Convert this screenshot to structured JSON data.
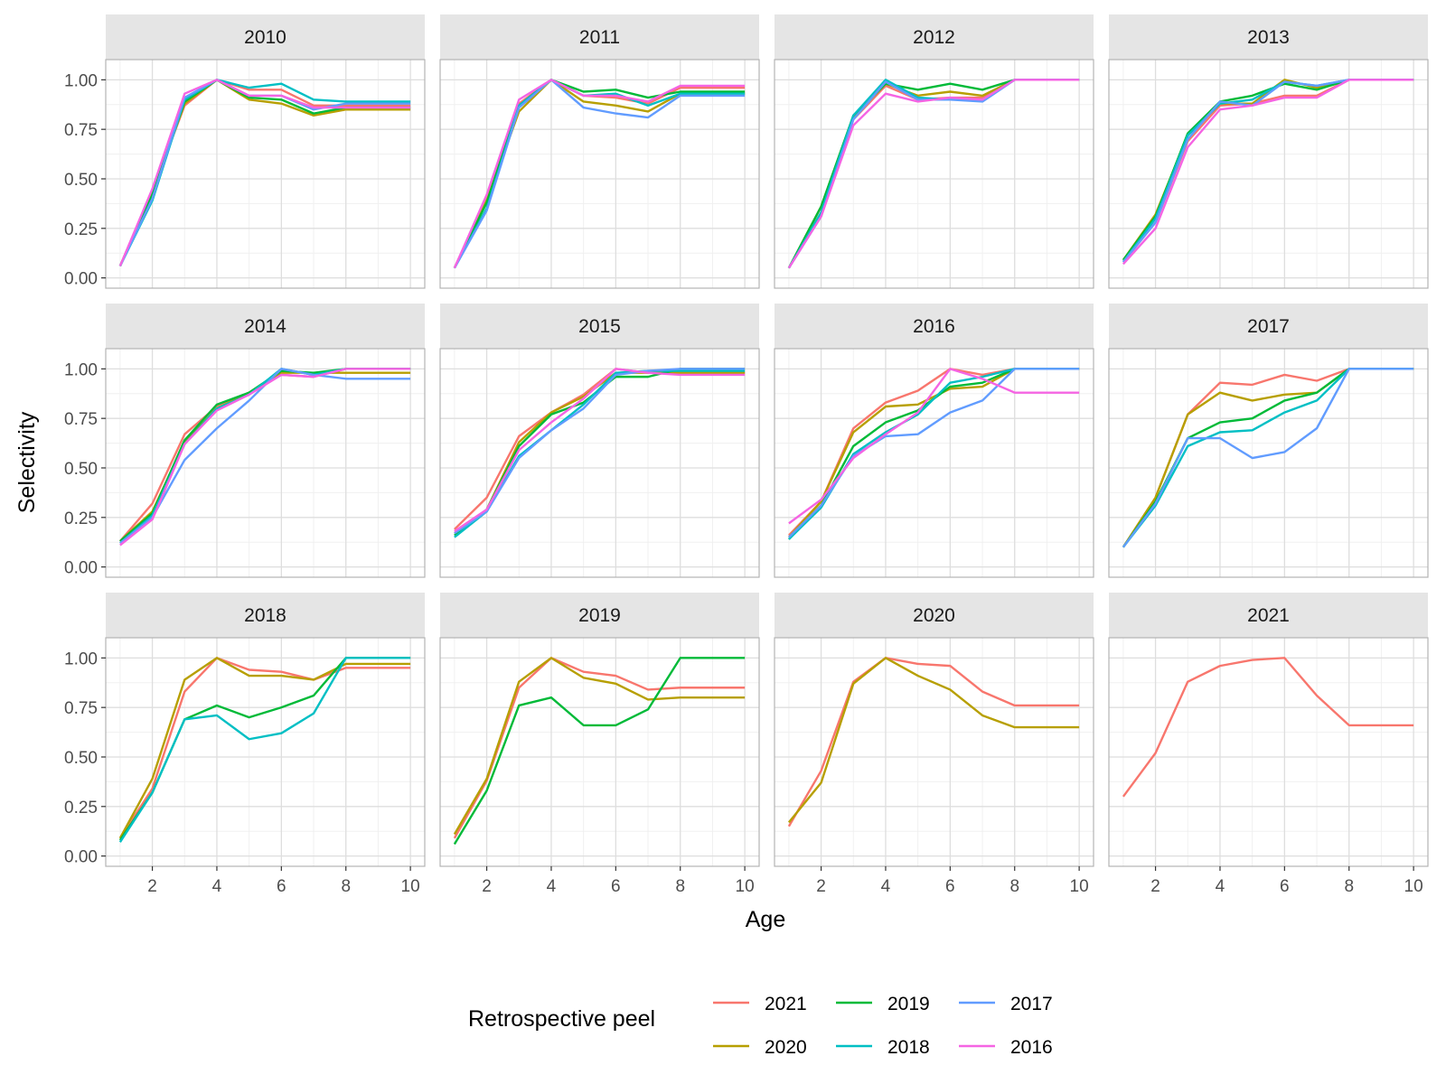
{
  "chart_data": {
    "type": "line",
    "xlabel": "Age",
    "ylabel": "Selectivity",
    "xlim": [
      1,
      10
    ],
    "ylim": [
      0,
      1.05
    ],
    "x_ticks": [
      "2",
      "4",
      "6",
      "8",
      "10"
    ],
    "y_ticks": [
      "0.00",
      "0.25",
      "0.50",
      "0.75",
      "1.00"
    ],
    "grid": true,
    "legend": {
      "title": "Retrospective peel",
      "position": "bottom",
      "entries": [
        {
          "name": "2021",
          "color": "#F8766D"
        },
        {
          "name": "2020",
          "color": "#B79F00"
        },
        {
          "name": "2019",
          "color": "#00BA38"
        },
        {
          "name": "2018",
          "color": "#00BFC4"
        },
        {
          "name": "2017",
          "color": "#619CFF"
        },
        {
          "name": "2016",
          "color": "#F564E3"
        }
      ]
    },
    "x": [
      1,
      2,
      3,
      4,
      5,
      6,
      7,
      8,
      9,
      10
    ],
    "panels": [
      {
        "title": "2010",
        "series": [
          {
            "name": "2021",
            "values": [
              0.06,
              0.44,
              0.87,
              1.0,
              0.95,
              0.95,
              0.87,
              0.87,
              0.87,
              0.87
            ]
          },
          {
            "name": "2020",
            "values": [
              0.06,
              0.43,
              0.88,
              1.0,
              0.9,
              0.88,
              0.82,
              0.85,
              0.85,
              0.85
            ]
          },
          {
            "name": "2019",
            "values": [
              0.06,
              0.42,
              0.89,
              1.0,
              0.91,
              0.9,
              0.83,
              0.86,
              0.86,
              0.86
            ]
          },
          {
            "name": "2018",
            "values": [
              0.06,
              0.39,
              0.9,
              1.0,
              0.96,
              0.98,
              0.9,
              0.89,
              0.89,
              0.89
            ]
          },
          {
            "name": "2017",
            "values": [
              0.06,
              0.4,
              0.91,
              1.0,
              0.92,
              0.92,
              0.85,
              0.88,
              0.88,
              0.88
            ]
          },
          {
            "name": "2016",
            "values": [
              0.06,
              0.45,
              0.93,
              1.0,
              0.92,
              0.92,
              0.86,
              0.86,
              0.86,
              0.86
            ]
          }
        ]
      },
      {
        "title": "2011",
        "series": [
          {
            "name": "2021",
            "values": [
              0.05,
              0.4,
              0.88,
              1.0,
              0.92,
              0.91,
              0.88,
              0.96,
              0.96,
              0.96
            ]
          },
          {
            "name": "2020",
            "values": [
              0.05,
              0.39,
              0.84,
              1.0,
              0.89,
              0.87,
              0.84,
              0.93,
              0.93,
              0.93
            ]
          },
          {
            "name": "2019",
            "values": [
              0.05,
              0.38,
              0.87,
              1.0,
              0.94,
              0.95,
              0.91,
              0.94,
              0.94,
              0.94
            ]
          },
          {
            "name": "2018",
            "values": [
              0.05,
              0.35,
              0.87,
              1.0,
              0.92,
              0.93,
              0.87,
              0.93,
              0.93,
              0.93
            ]
          },
          {
            "name": "2017",
            "values": [
              0.05,
              0.34,
              0.86,
              1.0,
              0.86,
              0.83,
              0.81,
              0.92,
              0.92,
              0.92
            ]
          },
          {
            "name": "2016",
            "values": [
              0.05,
              0.42,
              0.9,
              1.0,
              0.92,
              0.92,
              0.89,
              0.97,
              0.97,
              0.97
            ]
          }
        ]
      },
      {
        "title": "2012",
        "series": [
          {
            "name": "2021",
            "values": [
              0.05,
              0.33,
              0.8,
              0.97,
              0.9,
              0.91,
              0.91,
              1.0,
              1.0,
              1.0
            ]
          },
          {
            "name": "2020",
            "values": [
              0.05,
              0.36,
              0.81,
              0.98,
              0.92,
              0.94,
              0.92,
              1.0,
              1.0,
              1.0
            ]
          },
          {
            "name": "2019",
            "values": [
              0.05,
              0.36,
              0.82,
              0.98,
              0.95,
              0.98,
              0.95,
              1.0,
              1.0,
              1.0
            ]
          },
          {
            "name": "2018",
            "values": [
              0.05,
              0.33,
              0.82,
              1.0,
              0.91,
              0.9,
              0.9,
              1.0,
              1.0,
              1.0
            ]
          },
          {
            "name": "2017",
            "values": [
              0.05,
              0.31,
              0.8,
              0.99,
              0.9,
              0.9,
              0.89,
              1.0,
              1.0,
              1.0
            ]
          },
          {
            "name": "2016",
            "values": [
              0.05,
              0.31,
              0.77,
              0.93,
              0.89,
              0.91,
              0.9,
              1.0,
              1.0,
              1.0
            ]
          }
        ]
      },
      {
        "title": "2013",
        "series": [
          {
            "name": "2021",
            "values": [
              0.08,
              0.28,
              0.69,
              0.87,
              0.88,
              0.92,
              0.92,
              1.0,
              1.0,
              1.0
            ]
          },
          {
            "name": "2020",
            "values": [
              0.09,
              0.32,
              0.72,
              0.88,
              0.88,
              1.0,
              0.96,
              1.0,
              1.0,
              1.0
            ]
          },
          {
            "name": "2019",
            "values": [
              0.09,
              0.31,
              0.73,
              0.89,
              0.92,
              0.98,
              0.95,
              1.0,
              1.0,
              1.0
            ]
          },
          {
            "name": "2018",
            "values": [
              0.08,
              0.3,
              0.72,
              0.88,
              0.9,
              0.99,
              0.97,
              1.0,
              1.0,
              1.0
            ]
          },
          {
            "name": "2017",
            "values": [
              0.08,
              0.28,
              0.7,
              0.89,
              0.87,
              0.99,
              0.97,
              1.0,
              1.0,
              1.0
            ]
          },
          {
            "name": "2016",
            "values": [
              0.07,
              0.25,
              0.66,
              0.85,
              0.87,
              0.91,
              0.91,
              1.0,
              1.0,
              1.0
            ]
          }
        ]
      },
      {
        "title": "2014",
        "series": [
          {
            "name": "2021",
            "values": [
              0.13,
              0.32,
              0.67,
              0.81,
              0.88,
              0.97,
              0.96,
              1.0,
              1.0,
              1.0
            ]
          },
          {
            "name": "2020",
            "values": [
              0.13,
              0.28,
              0.63,
              0.8,
              0.88,
              0.98,
              0.98,
              0.98,
              0.98,
              0.98
            ]
          },
          {
            "name": "2019",
            "values": [
              0.13,
              0.27,
              0.64,
              0.82,
              0.88,
              0.99,
              0.98,
              1.0,
              1.0,
              1.0
            ]
          },
          {
            "name": "2018",
            "values": [
              0.12,
              0.26,
              0.62,
              0.8,
              0.87,
              1.0,
              0.97,
              1.0,
              1.0,
              1.0
            ]
          },
          {
            "name": "2017",
            "values": [
              0.12,
              0.25,
              0.54,
              0.7,
              0.84,
              1.0,
              0.97,
              0.95,
              0.95,
              0.95
            ]
          },
          {
            "name": "2016",
            "values": [
              0.11,
              0.24,
              0.62,
              0.79,
              0.87,
              0.97,
              0.96,
              1.0,
              1.0,
              1.0
            ]
          }
        ]
      },
      {
        "title": "2015",
        "series": [
          {
            "name": "2021",
            "values": [
              0.19,
              0.35,
              0.66,
              0.78,
              0.87,
              1.0,
              0.98,
              0.98,
              0.98,
              0.98
            ]
          },
          {
            "name": "2020",
            "values": [
              0.17,
              0.29,
              0.63,
              0.78,
              0.86,
              0.98,
              0.98,
              0.98,
              0.98,
              0.98
            ]
          },
          {
            "name": "2019",
            "values": [
              0.16,
              0.29,
              0.61,
              0.77,
              0.83,
              0.96,
              0.96,
              1.0,
              1.0,
              1.0
            ]
          },
          {
            "name": "2018",
            "values": [
              0.15,
              0.28,
              0.56,
              0.69,
              0.82,
              0.98,
              0.99,
              0.99,
              0.99,
              0.99
            ]
          },
          {
            "name": "2017",
            "values": [
              0.17,
              0.28,
              0.55,
              0.69,
              0.8,
              0.97,
              0.99,
              1.0,
              1.0,
              1.0
            ]
          },
          {
            "name": "2016",
            "values": [
              0.18,
              0.29,
              0.59,
              0.73,
              0.85,
              1.0,
              0.98,
              0.97,
              0.97,
              0.97
            ]
          }
        ]
      },
      {
        "title": "2016",
        "series": [
          {
            "name": "2021",
            "values": [
              0.16,
              0.33,
              0.7,
              0.83,
              0.89,
              1.0,
              0.97,
              1.0,
              1.0,
              1.0
            ]
          },
          {
            "name": "2020",
            "values": [
              0.15,
              0.33,
              0.68,
              0.81,
              0.82,
              0.9,
              0.91,
              1.0,
              1.0,
              1.0
            ]
          },
          {
            "name": "2019",
            "values": [
              0.14,
              0.31,
              0.61,
              0.73,
              0.79,
              0.91,
              0.93,
              1.0,
              1.0,
              1.0
            ]
          },
          {
            "name": "2018",
            "values": [
              0.14,
              0.3,
              0.57,
              0.68,
              0.77,
              0.93,
              0.96,
              1.0,
              1.0,
              1.0
            ]
          },
          {
            "name": "2017",
            "values": [
              0.15,
              0.31,
              0.56,
              0.66,
              0.67,
              0.78,
              0.84,
              1.0,
              1.0,
              1.0
            ]
          },
          {
            "name": "2016",
            "values": [
              0.22,
              0.34,
              0.55,
              0.67,
              0.78,
              1.0,
              0.95,
              0.88,
              0.88,
              0.88
            ]
          }
        ]
      },
      {
        "title": "2017",
        "series": [
          {
            "name": "2021",
            "values": [
              0.1,
              0.35,
              0.77,
              0.93,
              0.92,
              0.97,
              0.94,
              1.0,
              1.0,
              1.0
            ]
          },
          {
            "name": "2020",
            "values": [
              0.1,
              0.35,
              0.77,
              0.88,
              0.84,
              0.87,
              0.88,
              1.0,
              1.0,
              1.0
            ]
          },
          {
            "name": "2019",
            "values": [
              0.1,
              0.33,
              0.65,
              0.73,
              0.75,
              0.84,
              0.88,
              1.0,
              1.0,
              1.0
            ]
          },
          {
            "name": "2018",
            "values": [
              0.1,
              0.31,
              0.61,
              0.68,
              0.69,
              0.78,
              0.84,
              1.0,
              1.0,
              1.0
            ]
          },
          {
            "name": "2017",
            "values": [
              0.1,
              0.32,
              0.65,
              0.65,
              0.55,
              0.58,
              0.7,
              1.0,
              1.0,
              1.0
            ]
          }
        ]
      },
      {
        "title": "2018",
        "series": [
          {
            "name": "2021",
            "values": [
              0.09,
              0.34,
              0.83,
              1.0,
              0.94,
              0.93,
              0.89,
              0.95,
              0.95,
              0.95
            ]
          },
          {
            "name": "2020",
            "values": [
              0.09,
              0.39,
              0.89,
              1.0,
              0.91,
              0.91,
              0.89,
              0.97,
              0.97,
              0.97
            ]
          },
          {
            "name": "2019",
            "values": [
              0.08,
              0.32,
              0.69,
              0.76,
              0.7,
              0.75,
              0.81,
              1.0,
              1.0,
              1.0
            ]
          },
          {
            "name": "2018",
            "values": [
              0.07,
              0.32,
              0.69,
              0.71,
              0.59,
              0.62,
              0.72,
              1.0,
              1.0,
              1.0
            ]
          }
        ]
      },
      {
        "title": "2019",
        "series": [
          {
            "name": "2021",
            "values": [
              0.09,
              0.38,
              0.85,
              1.0,
              0.93,
              0.91,
              0.84,
              0.85,
              0.85,
              0.85
            ]
          },
          {
            "name": "2020",
            "values": [
              0.11,
              0.39,
              0.88,
              1.0,
              0.9,
              0.87,
              0.79,
              0.8,
              0.8,
              0.8
            ]
          },
          {
            "name": "2019",
            "values": [
              0.06,
              0.33,
              0.76,
              0.8,
              0.66,
              0.66,
              0.74,
              1.0,
              1.0,
              1.0
            ]
          }
        ]
      },
      {
        "title": "2020",
        "series": [
          {
            "name": "2021",
            "values": [
              0.15,
              0.43,
              0.88,
              1.0,
              0.97,
              0.96,
              0.83,
              0.76,
              0.76,
              0.76
            ]
          },
          {
            "name": "2020",
            "values": [
              0.17,
              0.37,
              0.87,
              1.0,
              0.91,
              0.84,
              0.71,
              0.65,
              0.65,
              0.65
            ]
          }
        ]
      },
      {
        "title": "2021",
        "series": [
          {
            "name": "2021",
            "values": [
              0.3,
              0.52,
              0.88,
              0.96,
              0.99,
              1.0,
              0.81,
              0.66,
              0.66,
              0.66
            ]
          }
        ]
      }
    ]
  }
}
